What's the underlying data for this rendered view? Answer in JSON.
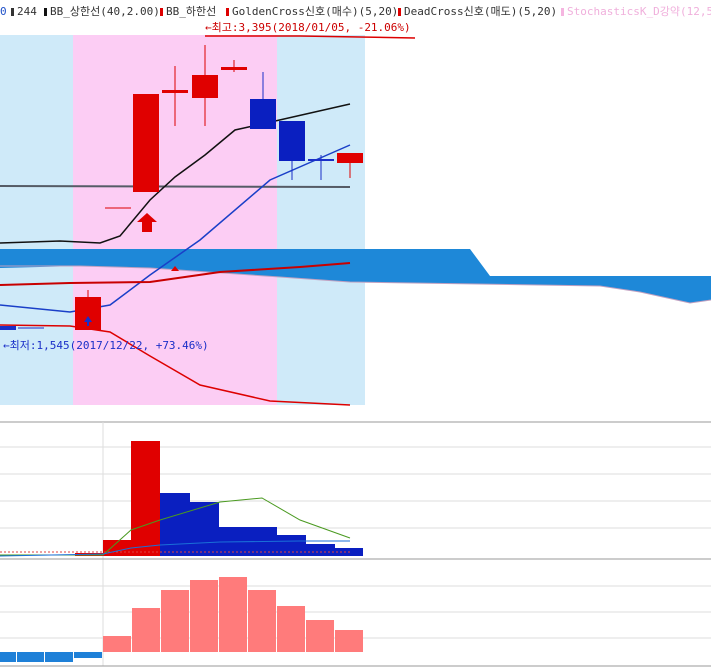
{
  "legend": {
    "items": [
      "0",
      "244",
      "BB_상한선(40,2.00)",
      "BB_하한선",
      "GoldenCross신호(매수)(5,20)",
      "DeadCross신호(매도)(5,20)",
      "StochasticsK_D강약(12,5,"
    ]
  },
  "annotations": {
    "high": "←최고:3,395(2018/01/05, -21.06%)",
    "low": "←최저:1,545(2017/12/22, +73.46%)"
  }
}
